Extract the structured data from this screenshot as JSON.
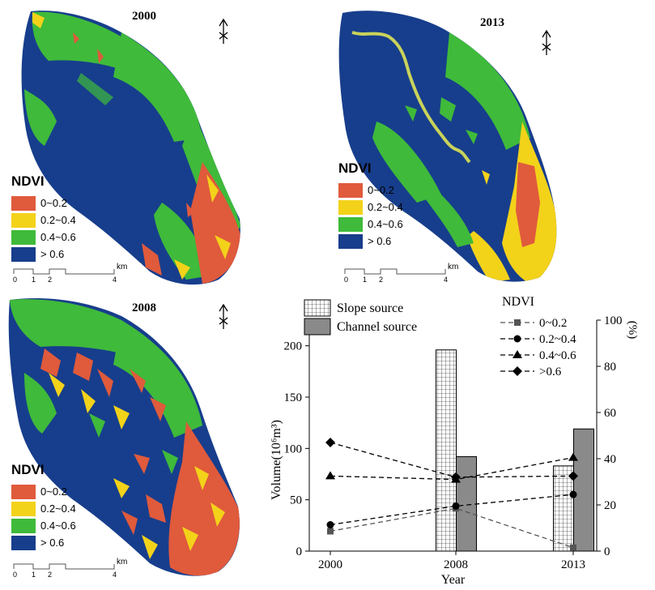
{
  "maps": [
    {
      "year": "2000",
      "legend": {
        "title": "NDVI",
        "items": [
          {
            "label": "0~0.2",
            "color": "#e05a3c"
          },
          {
            "label": "0.2~0.4",
            "color": "#f3d21a"
          },
          {
            "label": "0.4~0.6",
            "color": "#3fba3a"
          },
          {
            "label": "> 0.6",
            "color": "#173e8c"
          }
        ]
      },
      "scale": {
        "ticks": [
          "0",
          "1",
          "2",
          "4"
        ],
        "unit": "km"
      }
    },
    {
      "year": "2013",
      "legend": {
        "title": "NDVI",
        "items": [
          {
            "label": "0~0.2",
            "color": "#e05a3c"
          },
          {
            "label": "0.2~0.4",
            "color": "#f3d21a"
          },
          {
            "label": "0.4~0.6",
            "color": "#3fba3a"
          },
          {
            "label": "> 0.6",
            "color": "#173e8c"
          }
        ]
      },
      "scale": {
        "ticks": [
          "0",
          "1",
          "2",
          "4"
        ],
        "unit": "km"
      }
    },
    {
      "year": "2008",
      "legend": {
        "title": "NDVI",
        "items": [
          {
            "label": "0~0.2",
            "color": "#e05a3c"
          },
          {
            "label": "0.2~0.4",
            "color": "#f3d21a"
          },
          {
            "label": "0.4~0.6",
            "color": "#3fba3a"
          },
          {
            "label": "> 0.6",
            "color": "#173e8c"
          }
        ]
      },
      "scale": {
        "ticks": [
          "0",
          "1",
          "2",
          "4"
        ],
        "unit": "km"
      }
    }
  ],
  "chart_data": {
    "type": "bar",
    "x_ticks": [
      "2000",
      "2008",
      "2013"
    ],
    "xlabel": "Year",
    "ylabel": "Volume(10⁶m³)",
    "y2label": "(%)",
    "ylim": [
      0,
      225
    ],
    "y_ticks": [
      0,
      50,
      100,
      150,
      200
    ],
    "y2lim": [
      0,
      100
    ],
    "y2_ticks": [
      0,
      20,
      40,
      60,
      80,
      100
    ],
    "bar_series": [
      {
        "name": "Slope source",
        "pattern": "grid",
        "values": [
          {
            "x": "2008",
            "y": 196
          },
          {
            "x": "2013",
            "y": 83
          }
        ]
      },
      {
        "name": "Channel source",
        "pattern": "gray",
        "values": [
          {
            "x": "2008",
            "y": 92
          },
          {
            "x": "2013",
            "y": 119
          }
        ]
      }
    ],
    "line_legend_title": "NDVI",
    "line_series": [
      {
        "name": "0~0.2",
        "marker": "square",
        "color": "#555555",
        "values": [
          8.6,
          18.5,
          1.5
        ]
      },
      {
        "name": "0.2~0.4",
        "marker": "circle",
        "color": "#000000",
        "values": [
          11.4,
          19.5,
          24.5
        ]
      },
      {
        "name": "0.4~0.6",
        "marker": "triangle",
        "color": "#000000",
        "values": [
          32.5,
          31.0,
          40.5
        ]
      },
      {
        "name": ">0.6",
        "marker": "diamond",
        "color": "#000000",
        "values": [
          47.0,
          32.0,
          32.5
        ]
      }
    ]
  }
}
